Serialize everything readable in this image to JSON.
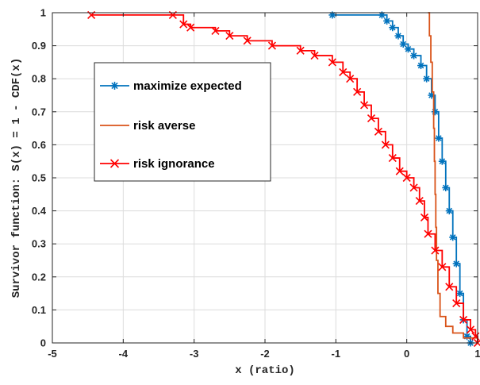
{
  "chart_data": {
    "type": "line",
    "xlabel": "x (ratio)",
    "ylabel": "Survivor function: S(x) = 1 - CDF(x)",
    "xlim": [
      -5,
      1
    ],
    "ylim": [
      0,
      1
    ],
    "xticks": [
      "-5",
      "-4",
      "-3",
      "-2",
      "-1",
      "0",
      "1"
    ],
    "yticks": [
      "0",
      "0.1",
      "0.2",
      "0.3",
      "0.4",
      "0.5",
      "0.6",
      "0.7",
      "0.8",
      "0.9",
      "1"
    ],
    "grid": true,
    "legend_position": "upper-left-center",
    "series": [
      {
        "name": "maximize expected",
        "color": "#0072BD",
        "marker": "asterisk",
        "points": [
          [
            -1.05,
            0.993
          ],
          [
            -0.35,
            0.993
          ],
          [
            -0.28,
            0.975
          ],
          [
            -0.2,
            0.955
          ],
          [
            -0.12,
            0.93
          ],
          [
            -0.05,
            0.905
          ],
          [
            0.02,
            0.89
          ],
          [
            0.1,
            0.87
          ],
          [
            0.2,
            0.84
          ],
          [
            0.28,
            0.8
          ],
          [
            0.35,
            0.75
          ],
          [
            0.4,
            0.7
          ],
          [
            0.45,
            0.62
          ],
          [
            0.5,
            0.55
          ],
          [
            0.55,
            0.47
          ],
          [
            0.6,
            0.4
          ],
          [
            0.65,
            0.32
          ],
          [
            0.7,
            0.24
          ],
          [
            0.75,
            0.15
          ],
          [
            0.8,
            0.07
          ],
          [
            0.85,
            0.02
          ],
          [
            0.9,
            0.0
          ]
        ]
      },
      {
        "name": "risk averse",
        "color": "#D95319",
        "marker": "none",
        "points": [
          [
            0.3,
            1.0
          ],
          [
            0.32,
            0.93
          ],
          [
            0.34,
            0.85
          ],
          [
            0.36,
            0.76
          ],
          [
            0.38,
            0.65
          ],
          [
            0.39,
            0.55
          ],
          [
            0.4,
            0.45
          ],
          [
            0.41,
            0.35
          ],
          [
            0.42,
            0.25
          ],
          [
            0.44,
            0.15
          ],
          [
            0.47,
            0.08
          ],
          [
            0.55,
            0.05
          ],
          [
            0.65,
            0.03
          ],
          [
            0.8,
            0.015
          ],
          [
            1.0,
            0.005
          ]
        ]
      },
      {
        "name": "risk ignorance",
        "color": "#FF0000",
        "marker": "x",
        "points": [
          [
            -4.45,
            0.993
          ],
          [
            -3.3,
            0.993
          ],
          [
            -3.15,
            0.965
          ],
          [
            -3.05,
            0.955
          ],
          [
            -2.7,
            0.945
          ],
          [
            -2.5,
            0.93
          ],
          [
            -2.25,
            0.915
          ],
          [
            -1.9,
            0.9
          ],
          [
            -1.5,
            0.885
          ],
          [
            -1.3,
            0.87
          ],
          [
            -1.05,
            0.85
          ],
          [
            -0.9,
            0.82
          ],
          [
            -0.8,
            0.8
          ],
          [
            -0.7,
            0.76
          ],
          [
            -0.6,
            0.72
          ],
          [
            -0.5,
            0.68
          ],
          [
            -0.4,
            0.64
          ],
          [
            -0.3,
            0.6
          ],
          [
            -0.2,
            0.56
          ],
          [
            -0.1,
            0.52
          ],
          [
            0.0,
            0.5
          ],
          [
            0.1,
            0.47
          ],
          [
            0.18,
            0.43
          ],
          [
            0.25,
            0.38
          ],
          [
            0.3,
            0.33
          ],
          [
            0.4,
            0.28
          ],
          [
            0.5,
            0.23
          ],
          [
            0.6,
            0.17
          ],
          [
            0.7,
            0.12
          ],
          [
            0.8,
            0.07
          ],
          [
            0.9,
            0.04
          ],
          [
            0.97,
            0.02
          ],
          [
            1.0,
            0.0
          ]
        ]
      }
    ]
  }
}
